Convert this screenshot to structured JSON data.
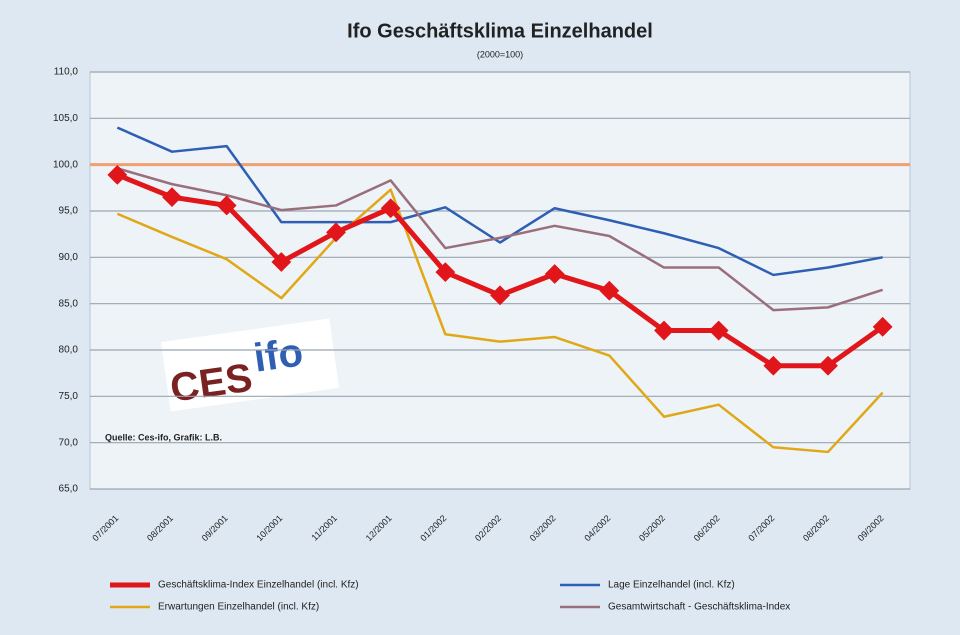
{
  "chart_data": {
    "type": "line",
    "title": "Ifo Geschäftsklima Einzelhandel",
    "subtitle": "(2000=100)",
    "logo": [
      "CES",
      "ifo"
    ],
    "note": "Quelle: Ces-ifo, Grafik: L.B.",
    "categories": [
      "07/2001",
      "08/2001",
      "09/2001",
      "10/2001",
      "11/2001",
      "12/2001",
      "01/2002",
      "02/2002",
      "03/2002",
      "04/2002",
      "05/2002",
      "06/2002",
      "07/2002",
      "08/2002",
      "09/2002"
    ],
    "series": [
      {
        "name": "Geschäftsklima-Index Einzelhandel (incl. Kfz)",
        "color": "#e0161b",
        "width": 5,
        "marker": true,
        "values": [
          98.9,
          96.5,
          95.6,
          89.5,
          92.7,
          95.3,
          88.4,
          85.9,
          88.2,
          86.4,
          82.1,
          82.1,
          78.3,
          78.3,
          82.5
        ]
      },
      {
        "name": "Lage Einzelhandel (incl. Kfz)",
        "color": "#2e5fb3",
        "width": 2.5,
        "marker": false,
        "values": [
          104.0,
          101.4,
          102.0,
          93.8,
          93.8,
          93.8,
          95.4,
          91.6,
          95.3,
          94.0,
          92.6,
          91.0,
          88.1,
          88.9,
          90.0
        ]
      },
      {
        "name": "Erwartungen Einzelhandel (incl. Kfz)",
        "color": "#e0a816",
        "width": 2.5,
        "marker": false,
        "values": [
          94.7,
          92.2,
          89.8,
          85.6,
          92.1,
          97.3,
          81.7,
          80.9,
          81.4,
          79.4,
          72.8,
          74.1,
          69.5,
          69.0,
          75.4
        ]
      },
      {
        "name": "Gesamtwirtschaft - Geschäftsklima-Index",
        "color": "#9a6f7c",
        "width": 2.5,
        "marker": false,
        "values": [
          99.6,
          97.9,
          96.7,
          95.1,
          95.6,
          98.3,
          91.0,
          92.1,
          93.4,
          92.3,
          88.9,
          88.9,
          84.3,
          84.6,
          86.5
        ]
      }
    ],
    "reference_line": 100,
    "reference_color": "#f0a070",
    "ylim": [
      65,
      110
    ],
    "yticks": [
      {
        "value": 110,
        "label": "110,0"
      },
      {
        "value": 105,
        "label": "105,0"
      },
      {
        "value": 100,
        "label": "100,0"
      },
      {
        "value": 95,
        "label": "95,0"
      },
      {
        "value": 90,
        "label": "90,0"
      },
      {
        "value": 85,
        "label": "85,0"
      },
      {
        "value": 80,
        "label": "80,0"
      },
      {
        "value": 75,
        "label": "75,0"
      },
      {
        "value": 70,
        "label": "70,0"
      },
      {
        "value": 65,
        "label": "65,0"
      }
    ],
    "grid": true
  }
}
